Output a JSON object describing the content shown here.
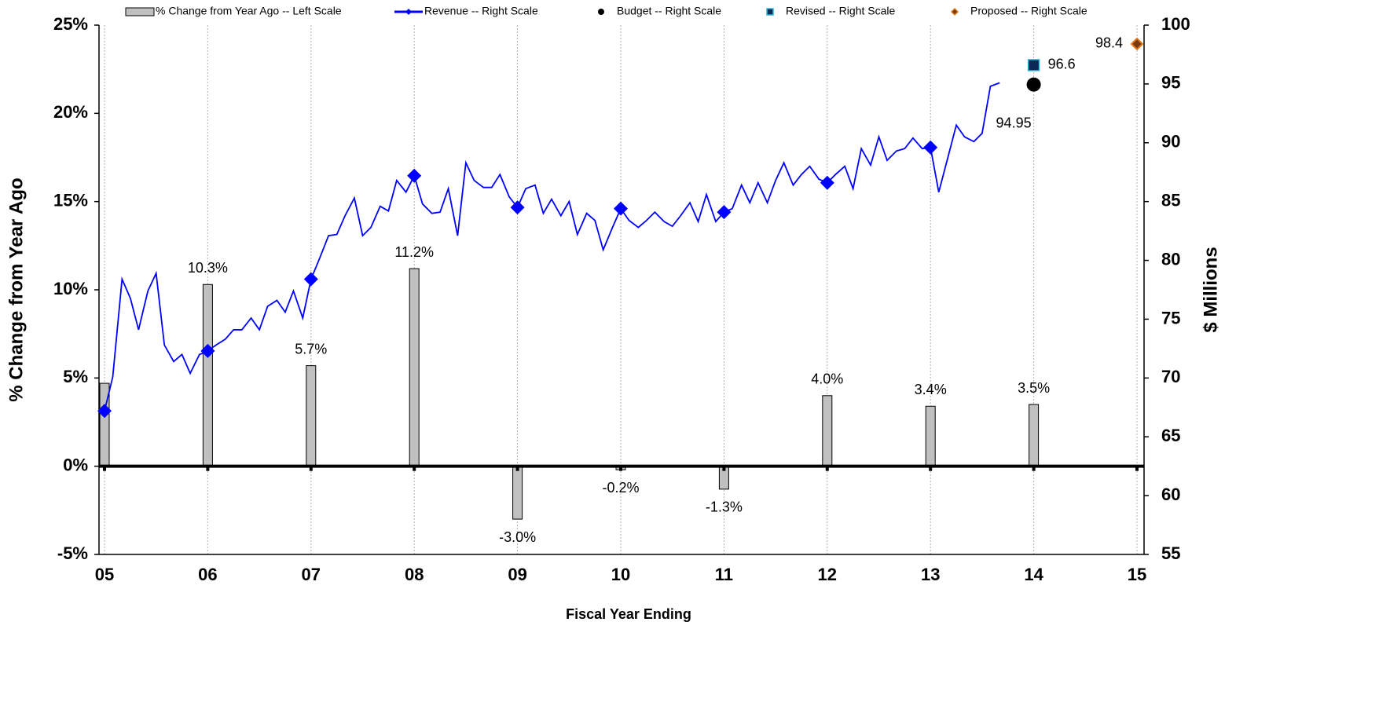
{
  "chart_data": {
    "type": "combo",
    "xlabel": "Fiscal Year Ending",
    "ylabel": "% Change from Year Ago",
    "y2label": "$ Millions",
    "xlim": [
      5,
      15
    ],
    "xticks": [
      {
        "value": 5,
        "label": "05"
      },
      {
        "value": 6,
        "label": "06"
      },
      {
        "value": 7,
        "label": "07"
      },
      {
        "value": 8,
        "label": "08"
      },
      {
        "value": 9,
        "label": "09"
      },
      {
        "value": 10,
        "label": "10"
      },
      {
        "value": 11,
        "label": "11"
      },
      {
        "value": 12,
        "label": "12"
      },
      {
        "value": 13,
        "label": "13"
      },
      {
        "value": 14,
        "label": "14"
      },
      {
        "value": 15,
        "label": "15"
      }
    ],
    "ylim": [
      -5,
      25
    ],
    "yticks": [
      {
        "value": -5,
        "label": "-5%"
      },
      {
        "value": 0,
        "label": "0%"
      },
      {
        "value": 5,
        "label": "5%"
      },
      {
        "value": 10,
        "label": "10%"
      },
      {
        "value": 15,
        "label": "15%"
      },
      {
        "value": 20,
        "label": "20%"
      },
      {
        "value": 25,
        "label": "25%"
      }
    ],
    "y2lim": [
      55,
      100
    ],
    "y2ticks": [
      55,
      60,
      65,
      70,
      75,
      80,
      85,
      90,
      95,
      100
    ],
    "grid": "x",
    "series": [
      {
        "name": "% Change from Year Ago -- Left Scale",
        "type": "bar",
        "color": "#c0c0c0",
        "x": [
          5,
          6,
          7,
          8,
          9,
          10,
          11,
          12,
          13,
          14
        ],
        "values": [
          4.7,
          10.3,
          5.7,
          11.2,
          -3.0,
          -0.2,
          -1.3,
          4.0,
          3.4,
          3.5
        ],
        "value_labels": [
          null,
          "10.3%",
          "5.7%",
          "11.2%",
          "-3.0%",
          "-0.2%",
          "-1.3%",
          "4.0%",
          "3.4%",
          "3.5%"
        ]
      },
      {
        "name": "Revenue -- Right Scale",
        "type": "line",
        "color": "#0000ff",
        "marker": "diamond",
        "axis": "y2",
        "x": [
          5,
          5.08,
          5.17,
          5.25,
          5.33,
          5.42,
          5.5,
          5.58,
          5.67,
          5.75,
          5.83,
          5.92,
          6,
          6.08,
          6.17,
          6.25,
          6.33,
          6.42,
          6.5,
          6.58,
          6.67,
          6.75,
          6.83,
          6.92,
          7,
          7.08,
          7.17,
          7.25,
          7.33,
          7.42,
          7.5,
          7.58,
          7.67,
          7.75,
          7.83,
          7.92,
          8,
          8.08,
          8.17,
          8.25,
          8.33,
          8.42,
          8.5,
          8.58,
          8.67,
          8.75,
          8.83,
          8.92,
          9,
          9.08,
          9.17,
          9.25,
          9.33,
          9.42,
          9.5,
          9.58,
          9.67,
          9.75,
          9.83,
          9.92,
          10,
          10.08,
          10.17,
          10.25,
          10.33,
          10.42,
          10.5,
          10.58,
          10.67,
          10.75,
          10.83,
          10.92,
          11,
          11.08,
          11.17,
          11.25,
          11.33,
          11.42,
          11.5,
          11.58,
          11.67,
          11.75,
          11.83,
          11.92,
          12,
          12.08,
          12.17,
          12.25,
          12.33,
          12.42,
          12.5,
          12.58,
          12.67,
          12.75,
          12.83,
          12.92,
          13,
          13.08,
          13.17,
          13.25,
          13.33,
          13.42,
          13.5,
          13.58,
          13.67
        ],
        "values": [
          67.2,
          70.1,
          78.4,
          76.8,
          74.1,
          77.4,
          78.9,
          72.8,
          71.4,
          72.0,
          70.4,
          72.0,
          72.3,
          72.8,
          73.3,
          74.1,
          74.1,
          75.1,
          74.1,
          76.1,
          76.6,
          75.6,
          77.4,
          75.1,
          78.4,
          80.1,
          82.1,
          82.2,
          83.8,
          85.3,
          82.1,
          82.8,
          84.6,
          84.2,
          86.8,
          85.8,
          87.2,
          84.8,
          84.0,
          84.1,
          86.1,
          82.1,
          88.3,
          86.8,
          86.2,
          86.2,
          87.3,
          85.4,
          84.5,
          86.1,
          86.4,
          84.0,
          85.2,
          83.8,
          85.0,
          82.2,
          84.0,
          83.4,
          80.9,
          82.8,
          84.4,
          83.4,
          82.8,
          83.4,
          84.1,
          83.3,
          82.9,
          83.8,
          84.9,
          83.3,
          85.6,
          83.3,
          84.1,
          84.4,
          86.4,
          84.9,
          86.6,
          84.9,
          86.8,
          88.3,
          86.4,
          87.3,
          88.0,
          86.9,
          86.6,
          87.3,
          88.0,
          86.1,
          89.5,
          88.1,
          90.5,
          88.5,
          89.3,
          89.5,
          90.4,
          89.5,
          89.6,
          85.8,
          88.8,
          91.5,
          90.5,
          90.1,
          90.8,
          94.8,
          95.1
        ]
      },
      {
        "name": "Budget -- Right Scale",
        "type": "scatter",
        "marker": "circle",
        "color": "#000000",
        "axis": "y2",
        "x": [
          14
        ],
        "values": [
          94.95
        ]
      },
      {
        "name": "Revised -- Right Scale",
        "type": "scatter",
        "marker": "square",
        "color": "#0a2a55",
        "axis": "y2",
        "x": [
          14
        ],
        "values": [
          96.6
        ]
      },
      {
        "name": "Proposed -- Right Scale",
        "type": "scatter",
        "marker": "diamond",
        "color": "#e07a20",
        "axis": "y2",
        "x": [
          15
        ],
        "values": [
          98.4
        ]
      }
    ]
  }
}
